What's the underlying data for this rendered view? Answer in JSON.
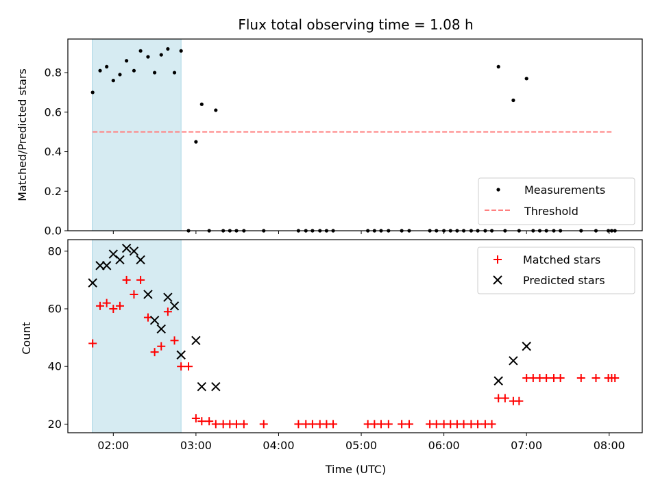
{
  "chart_data": [
    {
      "type": "scatter",
      "title": "Flux total observing time = 1.08 h",
      "xlabel": "",
      "ylabel": "Matched/Predicted stars",
      "xlim": [
        1.45,
        8.4
      ],
      "ylim": [
        0.0,
        0.97
      ],
      "yticks": [
        0.0,
        0.2,
        0.4,
        0.6,
        0.8
      ],
      "ytick_labels": [
        "0.0",
        "0.2",
        "0.4",
        "0.6",
        "0.8"
      ],
      "shaded_span": [
        1.745,
        2.82
      ],
      "threshold": {
        "value": 0.5,
        "x_range": [
          1.75,
          8.05
        ],
        "color": "#ff8080"
      },
      "legend_position": "lower-right",
      "legend": [
        "Measurements",
        "Threshold"
      ],
      "series": [
        {
          "name": "Measurements",
          "marker": "dot",
          "color": "#000000",
          "x": [
            1.75,
            1.84,
            1.92,
            2.0,
            2.08,
            2.16,
            2.25,
            2.33,
            2.42,
            2.5,
            2.58,
            2.66,
            2.74,
            2.82,
            2.91,
            3.0,
            3.07,
            3.16,
            3.24,
            3.33,
            3.41,
            3.49,
            3.58,
            3.82,
            4.24,
            4.33,
            4.41,
            4.5,
            4.58,
            4.66,
            5.08,
            5.16,
            5.24,
            5.33,
            5.49,
            5.58,
            5.83,
            5.91,
            6.0,
            6.08,
            6.16,
            6.24,
            6.33,
            6.41,
            6.5,
            6.58,
            6.66,
            6.74,
            6.84,
            6.91,
            7.0,
            7.08,
            7.16,
            7.24,
            7.33,
            7.41,
            7.66,
            7.84,
            7.99,
            8.03,
            8.07
          ],
          "y": [
            0.7,
            0.81,
            0.83,
            0.76,
            0.79,
            0.86,
            0.81,
            0.91,
            0.88,
            0.8,
            0.89,
            0.92,
            0.8,
            0.91,
            0.0,
            0.45,
            0.64,
            0.0,
            0.61,
            0.0,
            0.0,
            0.0,
            0.0,
            0.0,
            0.0,
            0.0,
            0.0,
            0.0,
            0.0,
            0.0,
            0.0,
            0.0,
            0.0,
            0.0,
            0.0,
            0.0,
            0.0,
            0.0,
            0.0,
            0.0,
            0.0,
            0.0,
            0.0,
            0.0,
            0.0,
            0.0,
            0.83,
            0.0,
            0.66,
            0.0,
            0.77,
            0.0,
            0.0,
            0.0,
            0.0,
            0.0,
            0.0,
            0.0,
            0.0,
            0.0,
            0.0
          ]
        }
      ]
    },
    {
      "type": "scatter",
      "title": "",
      "xlabel": "Time (UTC)",
      "ylabel": "Count",
      "xlim": [
        1.45,
        8.4
      ],
      "ylim": [
        17,
        84
      ],
      "yticks": [
        20,
        40,
        60,
        80
      ],
      "ytick_labels": [
        "20",
        "40",
        "60",
        "80"
      ],
      "xticks": [
        2,
        3,
        4,
        5,
        6,
        7,
        8
      ],
      "xtick_labels": [
        "02:00",
        "03:00",
        "04:00",
        "05:00",
        "06:00",
        "07:00",
        "08:00"
      ],
      "shaded_span": [
        1.745,
        2.82
      ],
      "legend_position": "upper-right",
      "legend": [
        "Matched stars",
        "Predicted stars"
      ],
      "series": [
        {
          "name": "Matched stars",
          "marker": "plus",
          "color": "#ff0000",
          "x": [
            1.75,
            1.84,
            1.92,
            2.0,
            2.08,
            2.16,
            2.25,
            2.33,
            2.42,
            2.5,
            2.58,
            2.66,
            2.74,
            2.82,
            2.91,
            3.0,
            3.07,
            3.16,
            3.24,
            3.33,
            3.41,
            3.49,
            3.58,
            3.82,
            4.24,
            4.33,
            4.41,
            4.5,
            4.58,
            4.66,
            5.08,
            5.16,
            5.24,
            5.33,
            5.49,
            5.58,
            5.83,
            5.91,
            6.0,
            6.08,
            6.16,
            6.24,
            6.33,
            6.41,
            6.5,
            6.58,
            6.66,
            6.74,
            6.84,
            6.91,
            7.0,
            7.08,
            7.16,
            7.24,
            7.33,
            7.41,
            7.66,
            7.84,
            7.99,
            8.03,
            8.07
          ],
          "y": [
            48,
            61,
            62,
            60,
            61,
            70,
            65,
            70,
            57,
            45,
            47,
            59,
            49,
            40,
            40,
            22,
            21,
            21,
            20,
            20,
            20,
            20,
            20,
            20,
            20,
            20,
            20,
            20,
            20,
            20,
            20,
            20,
            20,
            20,
            20,
            20,
            20,
            20,
            20,
            20,
            20,
            20,
            20,
            20,
            20,
            20,
            29,
            29,
            28,
            28,
            36,
            36,
            36,
            36,
            36,
            36,
            36,
            36,
            36,
            36,
            36
          ]
        },
        {
          "name": "Predicted stars",
          "marker": "x",
          "color": "#000000",
          "x": [
            1.75,
            1.84,
            1.92,
            2.0,
            2.08,
            2.16,
            2.25,
            2.33,
            2.42,
            2.5,
            2.58,
            2.66,
            2.74,
            2.82,
            3.0,
            3.07,
            3.24,
            6.66,
            6.84,
            7.0
          ],
          "y": [
            69,
            75,
            75,
            79,
            77,
            81,
            80,
            77,
            65,
            56,
            53,
            64,
            61,
            44,
            49,
            33,
            33,
            35,
            42,
            47
          ]
        }
      ]
    }
  ]
}
